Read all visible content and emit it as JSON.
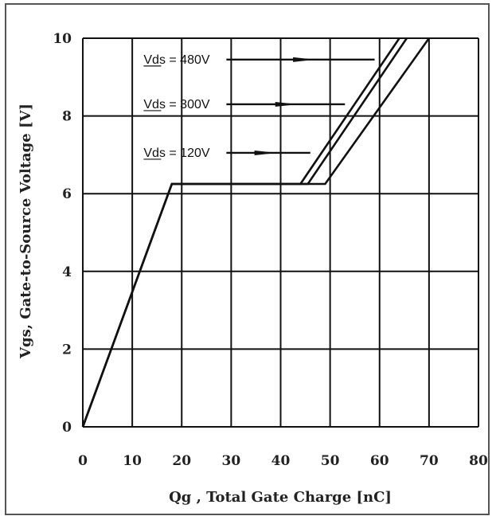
{
  "chart_data": {
    "type": "line",
    "title": "",
    "xlabel": "Qg , Total Gate Charge [nC]",
    "ylabel": "Vgs, Gate-to-Source Voltage [V]",
    "xlim": [
      0,
      80
    ],
    "ylim": [
      0,
      10
    ],
    "xticks": [
      "0",
      "10",
      "20",
      "30",
      "40",
      "50",
      "60",
      "70",
      "80"
    ],
    "yticks": [
      "0",
      "2",
      "4",
      "6",
      "8",
      "10"
    ],
    "grid": true,
    "series": [
      {
        "name": "Vds = 120V",
        "x": [
          0,
          18,
          44,
          64
        ],
        "y": [
          0,
          6.25,
          6.25,
          10
        ]
      },
      {
        "name": "Vds = 300V",
        "x": [
          0,
          18,
          45.5,
          65.5
        ],
        "y": [
          0,
          6.25,
          6.25,
          10
        ]
      },
      {
        "name": "Vds = 480V",
        "x": [
          0,
          18,
          49,
          70
        ],
        "y": [
          0,
          6.25,
          6.25,
          10
        ]
      }
    ],
    "annotations": [
      {
        "text": "Vds = 480V",
        "label_x": 30,
        "label_y": 9.45,
        "arrow_to_x": 59,
        "arrow_to_y": 9.45
      },
      {
        "text": "Vds = 300V",
        "label_x": 30,
        "label_y": 8.3,
        "arrow_to_x": 53,
        "arrow_to_y": 8.3
      },
      {
        "text": "Vds = 120V",
        "label_x": 30,
        "label_y": 7.05,
        "arrow_to_x": 46,
        "arrow_to_y": 7.05
      }
    ],
    "colors": {
      "line": "#111111",
      "grid": "#111111",
      "frame": "#555555"
    }
  }
}
